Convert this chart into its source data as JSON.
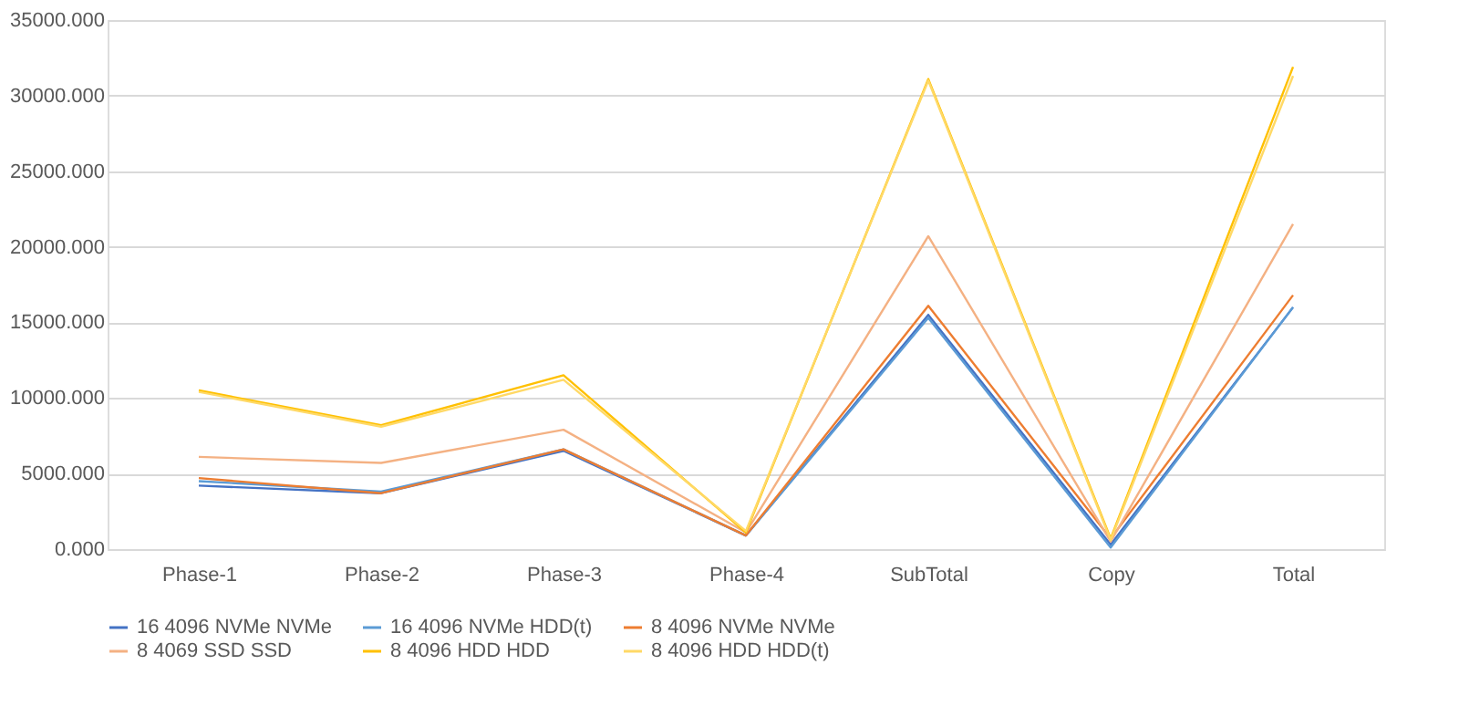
{
  "chart_data": {
    "type": "line",
    "categories": [
      "Phase-1",
      "Phase-2",
      "Phase-3",
      "Phase-4",
      "SubTotal",
      "Copy",
      "Total"
    ],
    "series": [
      {
        "name": "16 4096 NVMe NVMe",
        "color": "#4472c4",
        "values": [
          4200,
          3700,
          6500,
          900,
          15500,
          300,
          16000
        ]
      },
      {
        "name": "16 4096 NVMe HDD(t)",
        "color": "#5b9bd5",
        "values": [
          4500,
          3800,
          6600,
          900,
          15300,
          100,
          16000
        ]
      },
      {
        "name": "8 4096 NVMe NVMe",
        "color": "#ed7d31",
        "values": [
          4700,
          3700,
          6600,
          900,
          16100,
          700,
          16800
        ]
      },
      {
        "name": "8 4069 SSD SSD",
        "color": "#f4b183",
        "values": [
          6100,
          5700,
          7900,
          1100,
          20700,
          500,
          21500
        ]
      },
      {
        "name": "8 4096 HDD HDD",
        "color": "#ffc000",
        "values": [
          10500,
          8200,
          11500,
          1100,
          31100,
          700,
          31900
        ]
      },
      {
        "name": "8 4096 HDD HDD(t)",
        "color": "#ffd966",
        "values": [
          10400,
          8100,
          11200,
          1200,
          31000,
          600,
          31300
        ]
      }
    ],
    "ylim": [
      0,
      35000
    ],
    "yticks": [
      {
        "value": 0,
        "label": "0.000"
      },
      {
        "value": 5000,
        "label": "5000.000"
      },
      {
        "value": 10000,
        "label": "10000.000"
      },
      {
        "value": 15000,
        "label": "15000.000"
      },
      {
        "value": 20000,
        "label": "20000.000"
      },
      {
        "value": 25000,
        "label": "25000.000"
      },
      {
        "value": 30000,
        "label": "30000.000"
      },
      {
        "value": 35000,
        "label": "35000.000"
      }
    ],
    "grid": "y",
    "legend": "bottom",
    "marker": "none",
    "line_style": "solid"
  }
}
